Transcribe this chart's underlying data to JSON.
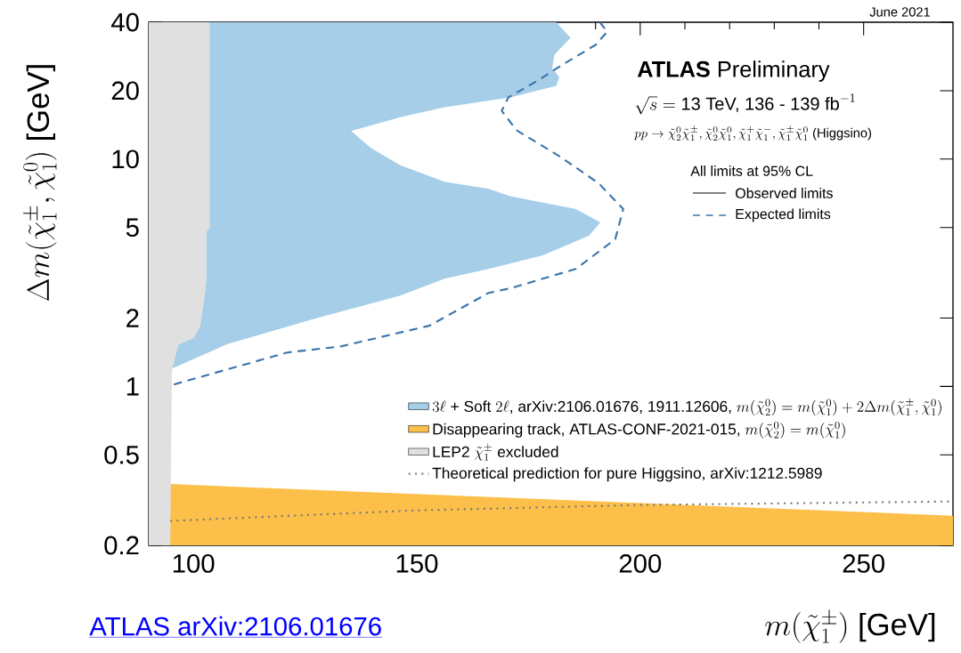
{
  "chart_data": {
    "type": "area",
    "xlabel": "m(\\tilde{\\chi}^{\\pm}_{1})\\ \\mbox{[GeV]}",
    "ylabel": "\\Delta m(\\tilde{\\chi}^{\\pm}_{1}, \\tilde{\\chi}^{0}_{1})\\ \\mbox{[GeV]}",
    "annotations": [
      "**ATLAS** Preliminary",
      "\\sqrt{s} = \\mbox{13 TeV, 136 - 139 fb}^{-1}",
      "pp \\rightarrow \\tilde{\\chi}^{0}_{2}\\tilde{\\chi}^{\\pm}_{1}, \\tilde{\\chi}^{0}_{2}\\tilde{\\chi}^{0}_{1}, \\tilde{\\chi}^{+}_{1}\\tilde{\\chi}^{-}_{1}, \\tilde{\\chi}^{\\pm}_{1}\\tilde{\\chi}^{0}_{1}\\mbox{ (Higgsino)}",
      "All limits at 95% CL",
      "Observed limits",
      "June 2021",
      "ATLAS arXiv:2106.01676"
    ],
    "series": [
      {
        "name": "3\\ell\\mbox{ + Soft }2\\ell\\mbox{, arXiv:2106.01676, 1911.12606, }m(\\tilde{\\chi}^{0}_{2}) = m(\\tilde{\\chi}^{0}_{1}) + 2\\Delta m(\\tilde{\\chi}^{\\pm}_{1}, \\tilde{\\chi}^{0}_{1})",
        "color": "#a6cee8",
        "x": [
          95.2,
          96.6,
          100.1,
          101.5,
          102.5,
          102.9,
          102.9,
          103.6,
          103.6,
          181.2,
          184.4,
          180.8,
          180.3,
          181.9,
          181.2,
          170.9,
          156.2,
          146.3,
          135.3,
          139.7,
          146.3,
          156.2,
          166.1,
          170.9,
          185.6,
          191.1,
          188.5,
          178.2,
          166.1,
          156.2,
          146.3,
          126.4,
          107.8
        ],
        "values": [
          1.2,
          1.53,
          1.64,
          1.85,
          2.51,
          3.01,
          4.8,
          5.0,
          40,
          40,
          34.2,
          28.8,
          25.2,
          22.9,
          21.0,
          18.7,
          16.9,
          15.3,
          13.3,
          11.2,
          9.39,
          7.96,
          7.4,
          6.87,
          6.03,
          5.27,
          4.6,
          3.77,
          3.29,
          2.98,
          2.51,
          1.97,
          1.54
        ]
      },
      {
        "name": "\\mbox{Disappearing track, ATLAS-CONF-2021-015, }m(\\tilde{\\chi}^{0}_{2}) = m(\\tilde{\\chi}^{0}_{1})",
        "color": "#fcbf49",
        "x": [
          94.8,
          270,
          270,
          94.8
        ],
        "values": [
          0.372,
          0.27,
          0.2,
          0.2
        ]
      },
      {
        "name": "\\mbox{LEP2 }\\tilde{\\chi}^{\\pm}_{1}\\mbox{ excluded}",
        "color": "#e0e0e0",
        "x": [
          90,
          103.6,
          103.6,
          102.9,
          102.9,
          102.5,
          101.5,
          100.1,
          96.6,
          95.2,
          94.8,
          90
        ],
        "values": [
          40,
          40,
          5.0,
          4.8,
          3.01,
          2.51,
          1.85,
          1.64,
          1.53,
          1.18,
          0.2,
          0.2
        ]
      },
      {
        "name": "\\mbox{Theoretical prediction for pure Higgsino, arXiv:1212.5989}",
        "color": "#777777",
        "type": "line",
        "line_style": "dotted",
        "x": [
          94.8,
          150,
          200,
          270
        ],
        "values": [
          0.256,
          0.285,
          0.301,
          0.312
        ]
      },
      {
        "name": "\\mbox{Expected limits}",
        "color": "#3a75ad",
        "type": "line",
        "line_style": "dashed",
        "x": [
          95.6,
          121,
          133,
          152.8,
          166.1,
          170.9,
          185.6,
          194.4,
          196.2,
          190.7,
          181.9,
          172.3,
          169.0,
          170.5,
          176.8,
          182.6,
          190.0,
          192.6,
          191.0
        ],
        "values": [
          1.02,
          1.41,
          1.5,
          1.85,
          2.58,
          2.7,
          3.29,
          4.44,
          6.03,
          7.83,
          10.3,
          13.4,
          16.3,
          18.7,
          22.0,
          26.0,
          31.8,
          36.3,
          40
        ]
      }
    ],
    "xlim": [
      90,
      270
    ],
    "ylim": [
      0.2,
      40
    ],
    "xticks": [
      100,
      150,
      200,
      250
    ],
    "yticks": [
      0.2,
      0.5,
      1,
      2,
      5,
      10,
      20,
      40
    ],
    "log": "y",
    "legend": "bottom right"
  }
}
